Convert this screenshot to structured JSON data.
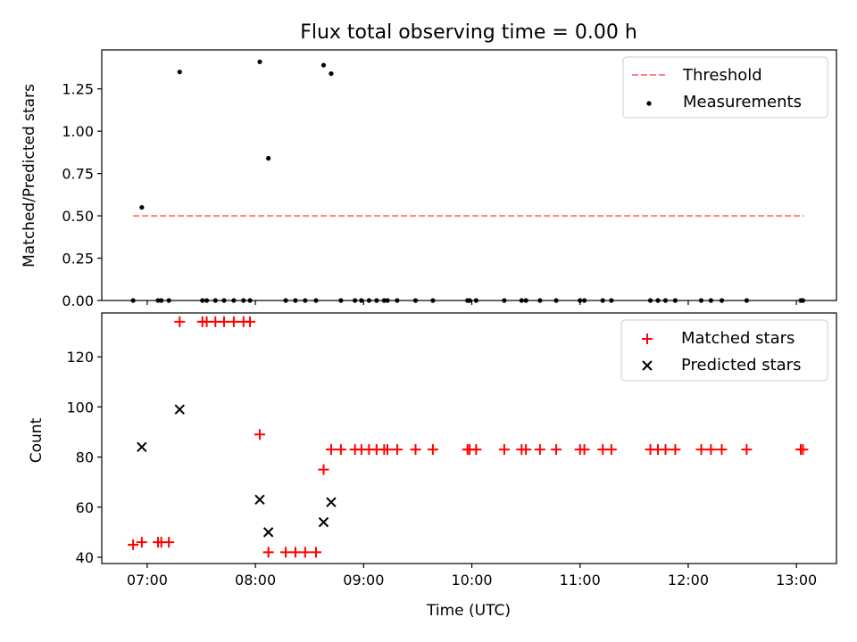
{
  "chart_data": {
    "type": "scatter",
    "title": "Flux total observing time = 0.00 h",
    "xlabel": "Time (UTC)",
    "x_tick_labels": [
      "07:00",
      "08:00",
      "09:00",
      "10:00",
      "11:00",
      "12:00",
      "13:00"
    ],
    "x_ticks_hours": [
      7,
      8,
      9,
      10,
      11,
      12,
      13
    ],
    "xlim_hours": [
      6.58,
      13.37
    ],
    "panels": [
      {
        "name": "ratio",
        "ylabel": "Matched/Predicted stars",
        "ylim": [
          0,
          1.48
        ],
        "y_ticks": [
          "0.00",
          "0.25",
          "0.50",
          "0.75",
          "1.00",
          "1.25"
        ],
        "series": [
          {
            "name": "Threshold",
            "kind": "dashed-line",
            "color": "#ff7f7f",
            "x": [
              6.87,
              13.07
            ],
            "y": [
              0.5,
              0.5
            ]
          },
          {
            "name": "Measurements",
            "kind": "dot",
            "color": "#000000",
            "x": [
              6.95,
              7.3,
              8.04,
              8.12,
              8.63,
              8.7
            ],
            "y": [
              0.55,
              1.35,
              1.41,
              0.84,
              1.39,
              1.34
            ]
          },
          {
            "name": "Zero measurements",
            "kind": "dot",
            "legend": false,
            "color": "#000000",
            "x": [
              6.87,
              7.1,
              7.13,
              7.2,
              7.51,
              7.55,
              7.63,
              7.71,
              7.8,
              7.89,
              7.95,
              8.28,
              8.37,
              8.46,
              8.56,
              8.79,
              8.92,
              8.98,
              9.05,
              9.12,
              9.19,
              9.22,
              9.31,
              9.48,
              9.64,
              9.96,
              9.98,
              10.04,
              10.3,
              10.46,
              10.5,
              10.63,
              10.78,
              11.0,
              11.04,
              11.21,
              11.29,
              11.65,
              11.72,
              11.79,
              11.88,
              12.12,
              12.21,
              12.31,
              12.54,
              13.04,
              13.06
            ],
            "y": [
              0,
              0,
              0,
              0,
              0,
              0,
              0,
              0,
              0,
              0,
              0,
              0,
              0,
              0,
              0,
              0,
              0,
              0,
              0,
              0,
              0,
              0,
              0,
              0,
              0,
              0,
              0,
              0,
              0,
              0,
              0,
              0,
              0,
              0,
              0,
              0,
              0,
              0,
              0,
              0,
              0,
              0,
              0,
              0,
              0,
              0,
              0
            ]
          }
        ],
        "legend": [
          "Threshold",
          "Measurements"
        ],
        "legend_location": "top-right"
      },
      {
        "name": "counts",
        "ylabel": "Count",
        "ylim": [
          37.5,
          137.5
        ],
        "y_ticks": [
          "40",
          "60",
          "80",
          "100",
          "120"
        ],
        "series": [
          {
            "name": "Matched stars",
            "kind": "plus",
            "color": "#ff0000",
            "x": [
              6.87,
              6.95,
              7.1,
              7.13,
              7.2,
              7.3,
              7.51,
              7.55,
              7.63,
              7.71,
              7.8,
              7.89,
              7.95,
              8.04,
              8.12,
              8.28,
              8.37,
              8.46,
              8.56,
              8.63,
              8.7,
              8.79,
              8.92,
              8.98,
              9.05,
              9.12,
              9.19,
              9.22,
              9.31,
              9.48,
              9.64,
              9.96,
              9.98,
              10.04,
              10.3,
              10.46,
              10.5,
              10.63,
              10.78,
              11.0,
              11.04,
              11.21,
              11.29,
              11.65,
              11.72,
              11.79,
              11.88,
              12.12,
              12.21,
              12.31,
              12.54,
              13.04,
              13.06
            ],
            "y": [
              45,
              46,
              46,
              46,
              46,
              134,
              134,
              134,
              134,
              134,
              134,
              134,
              134,
              89,
              42,
              42,
              42,
              42,
              42,
              75,
              83,
              83,
              83,
              83,
              83,
              83,
              83,
              83,
              83,
              83,
              83,
              83,
              83,
              83,
              83,
              83,
              83,
              83,
              83,
              83,
              83,
              83,
              83,
              83,
              83,
              83,
              83,
              83,
              83,
              83,
              83,
              83,
              83
            ]
          },
          {
            "name": "Predicted stars",
            "kind": "cross",
            "color": "#000000",
            "x": [
              6.95,
              7.3,
              8.04,
              8.12,
              8.63,
              8.7
            ],
            "y": [
              84,
              99,
              63,
              50,
              54,
              62
            ]
          }
        ],
        "legend": [
          "Matched stars",
          "Predicted stars"
        ],
        "legend_location": "top-right"
      }
    ]
  }
}
